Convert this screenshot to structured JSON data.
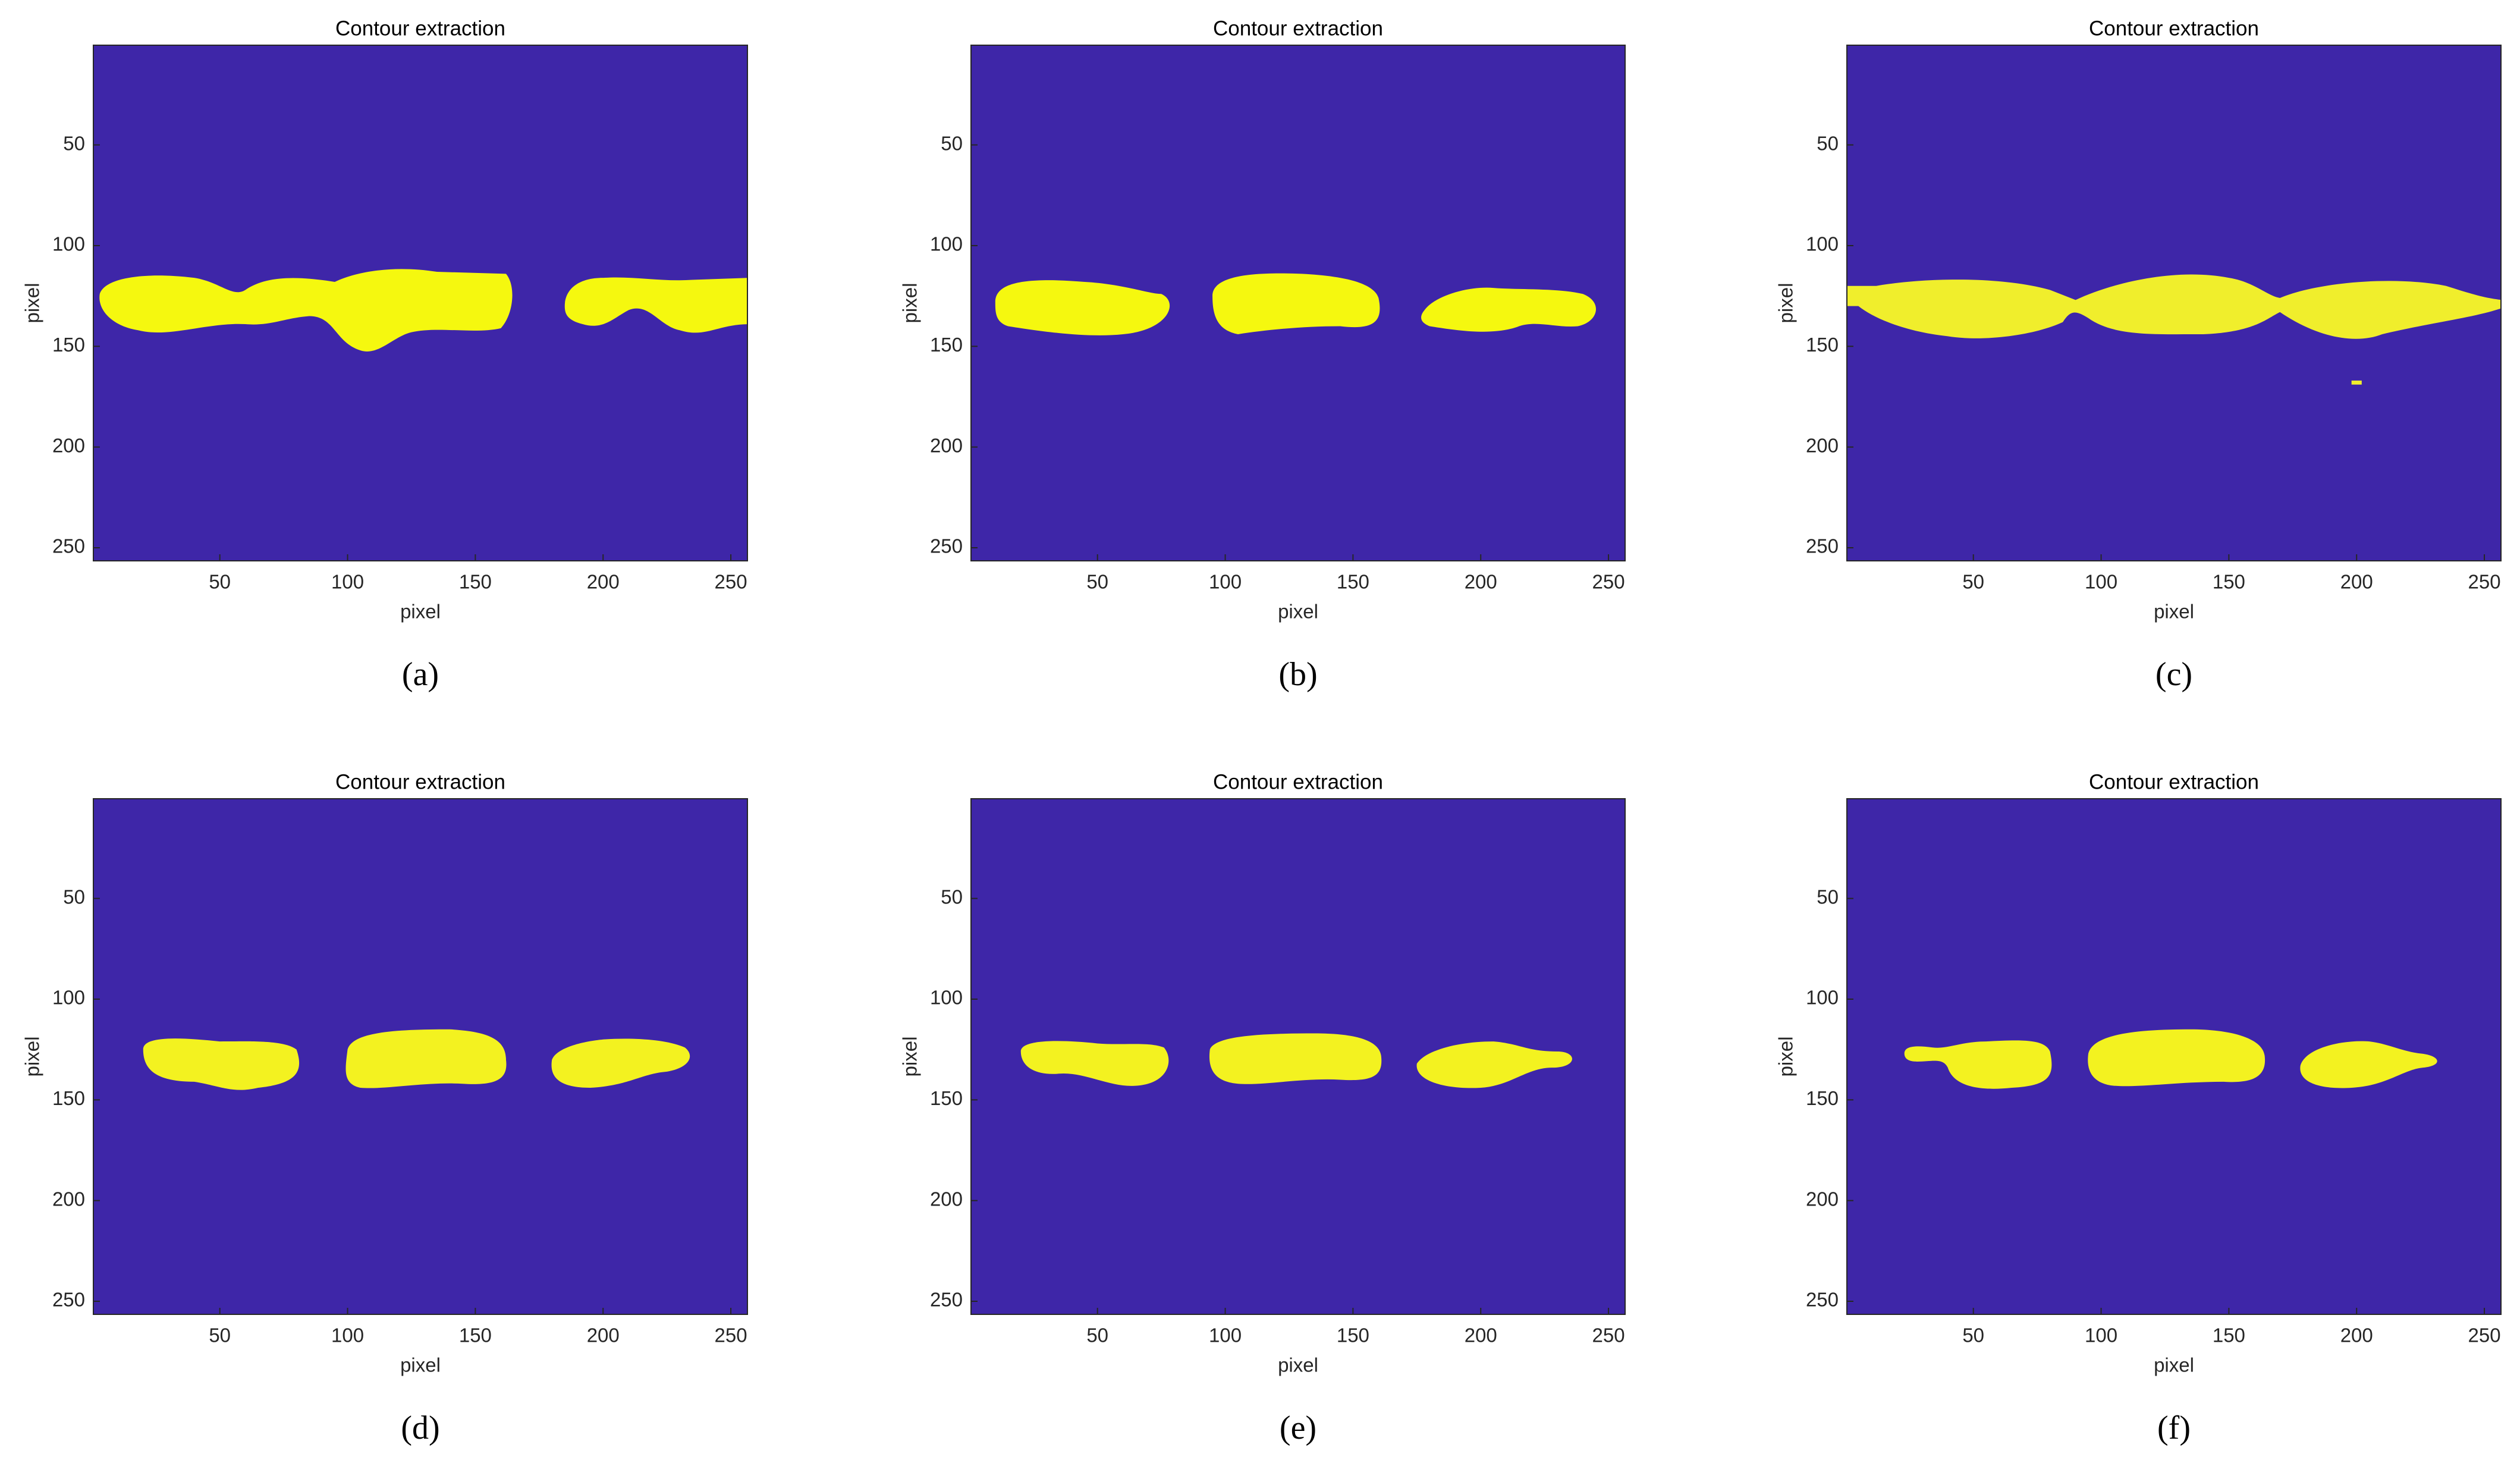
{
  "chart_data": [
    {
      "type": "image",
      "title": "Contour extraction",
      "xlabel": "pixel",
      "ylabel": "pixel",
      "caption": "(a)",
      "shape": "blob-a",
      "xlim": [
        0.5,
        256.5
      ],
      "ylim": [
        256.5,
        0.5
      ],
      "xticks": [
        50,
        100,
        150,
        200,
        250
      ],
      "yticks": [
        50,
        100,
        150,
        200,
        250
      ],
      "background_color": "#3e26a8",
      "color": "#f5f80f"
    },
    {
      "type": "image",
      "title": "Contour extraction",
      "xlabel": "pixel",
      "ylabel": "pixel",
      "caption": "(b)",
      "shape": "blob-b",
      "xlim": [
        0.5,
        256.5
      ],
      "ylim": [
        256.5,
        0.5
      ],
      "xticks": [
        50,
        100,
        150,
        200,
        250
      ],
      "yticks": [
        50,
        100,
        150,
        200,
        250
      ],
      "background_color": "#3e26a8",
      "color": "#f5f80f"
    },
    {
      "type": "image",
      "title": "Contour extraction",
      "xlabel": "pixel",
      "ylabel": "pixel",
      "caption": "(c)",
      "shape": "blob-c",
      "xlim": [
        0.5,
        256.5
      ],
      "ylim": [
        256.5,
        0.5
      ],
      "xticks": [
        50,
        100,
        150,
        200,
        250
      ],
      "yticks": [
        50,
        100,
        150,
        200,
        250
      ],
      "background_color": "#3e26a8",
      "color": "#f0ee2c"
    },
    {
      "type": "image",
      "title": "Contour extraction",
      "xlabel": "pixel",
      "ylabel": "pixel",
      "caption": "(d)",
      "shape": "blob-d",
      "xlim": [
        0.5,
        256.5
      ],
      "ylim": [
        256.5,
        0.5
      ],
      "xticks": [
        50,
        100,
        150,
        200,
        250
      ],
      "yticks": [
        50,
        100,
        150,
        200,
        250
      ],
      "background_color": "#3e26a8",
      "color": "#f3f220"
    },
    {
      "type": "image",
      "title": "Contour extraction",
      "xlabel": "pixel",
      "ylabel": "pixel",
      "caption": "(e)",
      "shape": "blob-e",
      "xlim": [
        0.5,
        256.5
      ],
      "ylim": [
        256.5,
        0.5
      ],
      "xticks": [
        50,
        100,
        150,
        200,
        250
      ],
      "yticks": [
        50,
        100,
        150,
        200,
        250
      ],
      "background_color": "#3e26a8",
      "color": "#f3f220"
    },
    {
      "type": "image",
      "title": "Contour extraction",
      "xlabel": "pixel",
      "ylabel": "pixel",
      "caption": "(f)",
      "shape": "blob-f",
      "xlim": [
        0.5,
        256.5
      ],
      "ylim": [
        256.5,
        0.5
      ],
      "xticks": [
        50,
        100,
        150,
        200,
        250
      ],
      "yticks": [
        50,
        100,
        150,
        200,
        250
      ],
      "background_color": "#3e26a8",
      "color": "#f3f220"
    }
  ]
}
